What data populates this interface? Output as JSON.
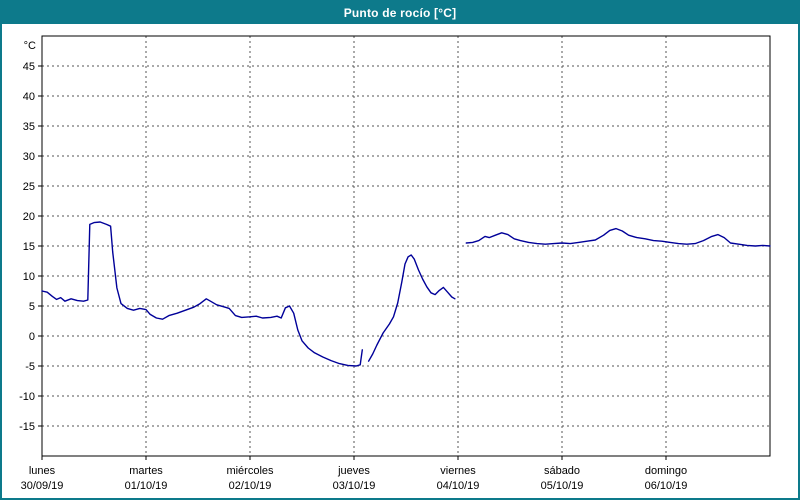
{
  "window": {
    "title": "Punto de rocío [°C]"
  },
  "colors": {
    "title_bar": "#0d7a8b",
    "window_border": "#0d7a8b",
    "title_text": "#ffffff",
    "line": "#000099",
    "grid": "#555555",
    "plot_border": "#000000",
    "plot_background": "#ffffff"
  },
  "chart_data": {
    "type": "line",
    "title": "Punto de rocío [°C]",
    "y_unit": "°C",
    "ylim": [
      -20,
      50
    ],
    "yticks": [
      45,
      40,
      35,
      30,
      25,
      20,
      15,
      10,
      5,
      0,
      -5,
      -10,
      -15
    ],
    "x_range_days": [
      0,
      7
    ],
    "grid": true,
    "legend": "none",
    "x_days": [
      {
        "name": "lunes",
        "date": "30/09/19"
      },
      {
        "name": "martes",
        "date": "01/10/19"
      },
      {
        "name": "miércoles",
        "date": "02/10/19"
      },
      {
        "name": "jueves",
        "date": "03/10/19"
      },
      {
        "name": "viernes",
        "date": "04/10/19"
      },
      {
        "name": "sábado",
        "date": "05/10/19"
      },
      {
        "name": "domingo",
        "date": "06/10/19"
      }
    ],
    "series": [
      {
        "name": "Punto de rocío",
        "segments": [
          [
            [
              0.0,
              7.5
            ],
            [
              0.05,
              7.3
            ],
            [
              0.1,
              6.6
            ],
            [
              0.14,
              6.1
            ],
            [
              0.18,
              6.4
            ],
            [
              0.22,
              5.8
            ],
            [
              0.28,
              6.2
            ],
            [
              0.34,
              5.9
            ],
            [
              0.4,
              5.8
            ],
            [
              0.44,
              6.0
            ],
            [
              0.46,
              18.6
            ],
            [
              0.5,
              18.9
            ],
            [
              0.56,
              19.0
            ],
            [
              0.62,
              18.6
            ],
            [
              0.66,
              18.3
            ],
            [
              0.68,
              14.0
            ],
            [
              0.72,
              8.0
            ],
            [
              0.76,
              5.4
            ],
            [
              0.82,
              4.6
            ],
            [
              0.88,
              4.3
            ],
            [
              0.94,
              4.6
            ],
            [
              1.0,
              4.4
            ],
            [
              1.04,
              3.6
            ],
            [
              1.1,
              3.0
            ],
            [
              1.16,
              2.8
            ],
            [
              1.22,
              3.4
            ],
            [
              1.3,
              3.8
            ],
            [
              1.38,
              4.3
            ],
            [
              1.46,
              4.8
            ],
            [
              1.52,
              5.4
            ],
            [
              1.58,
              6.2
            ],
            [
              1.62,
              5.8
            ],
            [
              1.68,
              5.2
            ],
            [
              1.74,
              4.9
            ],
            [
              1.8,
              4.6
            ],
            [
              1.86,
              3.4
            ],
            [
              1.92,
              3.1
            ],
            [
              2.0,
              3.2
            ],
            [
              2.06,
              3.3
            ],
            [
              2.12,
              3.0
            ],
            [
              2.2,
              3.1
            ],
            [
              2.26,
              3.3
            ],
            [
              2.3,
              3.0
            ],
            [
              2.34,
              4.7
            ],
            [
              2.38,
              5.0
            ],
            [
              2.42,
              3.8
            ],
            [
              2.46,
              1.0
            ],
            [
              2.5,
              -0.8
            ],
            [
              2.56,
              -2.0
            ],
            [
              2.62,
              -2.8
            ],
            [
              2.7,
              -3.5
            ],
            [
              2.78,
              -4.1
            ],
            [
              2.86,
              -4.6
            ],
            [
              2.94,
              -4.9
            ],
            [
              3.02,
              -5.0
            ],
            [
              3.06,
              -4.8
            ],
            [
              3.08,
              -2.3
            ]
          ],
          [
            [
              3.14,
              -4.2
            ],
            [
              3.18,
              -3.0
            ],
            [
              3.22,
              -1.5
            ],
            [
              3.28,
              0.5
            ],
            [
              3.34,
              2.0
            ],
            [
              3.38,
              3.2
            ],
            [
              3.42,
              5.5
            ],
            [
              3.46,
              9.0
            ],
            [
              3.49,
              12.0
            ],
            [
              3.52,
              13.2
            ],
            [
              3.55,
              13.5
            ],
            [
              3.58,
              12.8
            ],
            [
              3.62,
              11.0
            ],
            [
              3.66,
              9.5
            ],
            [
              3.7,
              8.2
            ],
            [
              3.74,
              7.2
            ],
            [
              3.78,
              6.9
            ],
            [
              3.82,
              7.6
            ],
            [
              3.86,
              8.1
            ],
            [
              3.9,
              7.3
            ],
            [
              3.94,
              6.5
            ],
            [
              3.97,
              6.2
            ]
          ],
          [
            [
              4.08,
              15.5
            ],
            [
              4.14,
              15.6
            ],
            [
              4.2,
              15.9
            ],
            [
              4.26,
              16.6
            ],
            [
              4.3,
              16.4
            ],
            [
              4.36,
              16.8
            ],
            [
              4.42,
              17.2
            ],
            [
              4.48,
              16.9
            ],
            [
              4.54,
              16.2
            ],
            [
              4.6,
              15.9
            ],
            [
              4.68,
              15.6
            ],
            [
              4.76,
              15.4
            ],
            [
              4.84,
              15.3
            ],
            [
              4.92,
              15.4
            ],
            [
              5.0,
              15.5
            ],
            [
              5.08,
              15.4
            ],
            [
              5.16,
              15.6
            ],
            [
              5.24,
              15.8
            ],
            [
              5.32,
              16.0
            ],
            [
              5.4,
              16.8
            ],
            [
              5.46,
              17.6
            ],
            [
              5.52,
              17.9
            ],
            [
              5.58,
              17.5
            ],
            [
              5.64,
              16.8
            ],
            [
              5.72,
              16.4
            ],
            [
              5.8,
              16.2
            ],
            [
              5.88,
              15.9
            ],
            [
              5.96,
              15.8
            ],
            [
              6.04,
              15.6
            ],
            [
              6.12,
              15.4
            ],
            [
              6.2,
              15.3
            ],
            [
              6.28,
              15.4
            ],
            [
              6.36,
              15.9
            ],
            [
              6.44,
              16.6
            ],
            [
              6.5,
              16.9
            ],
            [
              6.56,
              16.4
            ],
            [
              6.62,
              15.5
            ],
            [
              6.7,
              15.3
            ],
            [
              6.78,
              15.1
            ],
            [
              6.86,
              15.0
            ],
            [
              6.93,
              15.1
            ],
            [
              7.0,
              15.0
            ]
          ]
        ]
      }
    ]
  }
}
